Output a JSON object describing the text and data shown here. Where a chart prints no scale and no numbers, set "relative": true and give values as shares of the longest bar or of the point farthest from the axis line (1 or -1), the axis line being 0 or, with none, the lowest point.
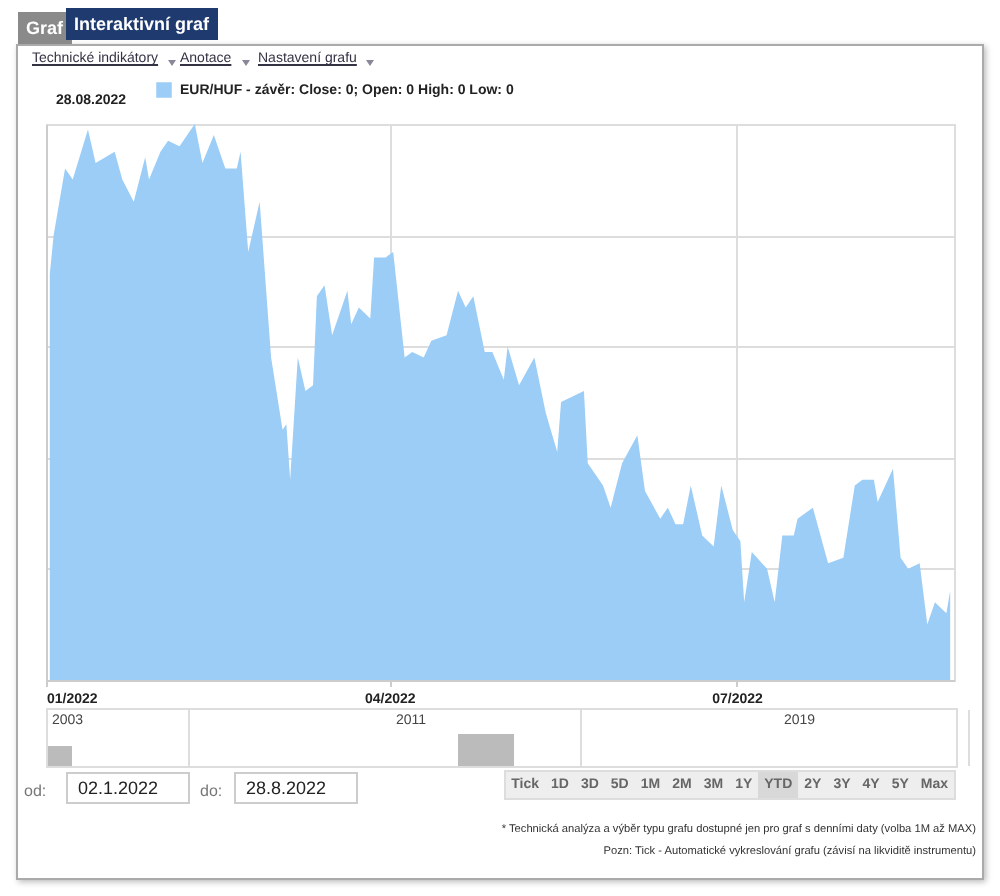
{
  "chart_data": {
    "type": "area",
    "relative": true,
    "title": "28.08.2022",
    "x": [
      "2022-01-02",
      "2022-01-03",
      "2022-01-06",
      "2022-01-08",
      "2022-01-12",
      "2022-01-14",
      "2022-01-19",
      "2022-01-21",
      "2022-01-24",
      "2022-01-27",
      "2022-01-28",
      "2022-01-31",
      "2022-02-02",
      "2022-02-05",
      "2022-02-09",
      "2022-02-11",
      "2022-02-14",
      "2022-02-17",
      "2022-02-20",
      "2022-02-21",
      "2022-02-23",
      "2022-02-26",
      "2022-03-01",
      "2022-03-04",
      "2022-03-05",
      "2022-03-06",
      "2022-03-08",
      "2022-03-10",
      "2022-03-12",
      "2022-03-13",
      "2022-03-15",
      "2022-03-17",
      "2022-03-21",
      "2022-03-22",
      "2022-03-24",
      "2022-03-27",
      "2022-03-28",
      "2022-03-31",
      "2022-04-02",
      "2022-04-05",
      "2022-04-07",
      "2022-04-10",
      "2022-04-12",
      "2022-04-16",
      "2022-04-19",
      "2022-04-21",
      "2022-04-23",
      "2022-04-26",
      "2022-04-28",
      "2022-05-01",
      "2022-05-02",
      "2022-05-05",
      "2022-05-09",
      "2022-05-12",
      "2022-05-15",
      "2022-05-16",
      "2022-05-22",
      "2022-05-23",
      "2022-05-27",
      "2022-05-29",
      "2022-06-01",
      "2022-06-05",
      "2022-06-07",
      "2022-06-11",
      "2022-06-13",
      "2022-06-15",
      "2022-06-17",
      "2022-06-19",
      "2022-06-22",
      "2022-06-25",
      "2022-06-27",
      "2022-06-30",
      "2022-07-02",
      "2022-07-03",
      "2022-07-05",
      "2022-07-09",
      "2022-07-11",
      "2022-07-13",
      "2022-07-16",
      "2022-07-17",
      "2022-07-21",
      "2022-07-25",
      "2022-07-29",
      "2022-08-01",
      "2022-08-03",
      "2022-08-06",
      "2022-08-07",
      "2022-08-11",
      "2022-08-13",
      "2022-08-15",
      "2022-08-18",
      "2022-08-20",
      "2022-08-22",
      "2022-08-25",
      "2022-08-26"
    ],
    "series": [
      {
        "name": "EUR/HUF - závěr: Close: 0; Open: 0 High: 0 Low: 0",
        "color": "#9bcdf6",
        "values": [
          0.73,
          0.8,
          0.92,
          0.9,
          0.99,
          0.93,
          0.95,
          0.9,
          0.86,
          0.94,
          0.9,
          0.95,
          0.97,
          0.96,
          1,
          0.93,
          0.98,
          0.92,
          0.92,
          0.95,
          0.77,
          0.86,
          0.58,
          0.45,
          0.46,
          0.36,
          0.58,
          0.52,
          0.53,
          0.69,
          0.71,
          0.62,
          0.7,
          0.64,
          0.67,
          0.65,
          0.76,
          0.76,
          0.77,
          0.58,
          0.59,
          0.58,
          0.61,
          0.62,
          0.7,
          0.67,
          0.69,
          0.59,
          0.59,
          0.54,
          0.6,
          0.53,
          0.58,
          0.48,
          0.41,
          0.5,
          0.52,
          0.39,
          0.35,
          0.31,
          0.39,
          0.44,
          0.34,
          0.29,
          0.31,
          0.28,
          0.28,
          0.35,
          0.26,
          0.24,
          0.35,
          0.27,
          0.25,
          0.14,
          0.23,
          0.2,
          0.14,
          0.26,
          0.26,
          0.29,
          0.31,
          0.21,
          0.22,
          0.35,
          0.36,
          0.36,
          0.32,
          0.38,
          0.22,
          0.2,
          0.21,
          0.1,
          0.14,
          0.12,
          0.16
        ]
      }
    ],
    "xlim": [
      "2022-01-01",
      "2022-08-27"
    ],
    "xticks": [
      {
        "value": "2022-01-01",
        "label": "01/2022"
      },
      {
        "value": "2022-04-01",
        "label": "04/2022"
      },
      {
        "value": "2022-07-01",
        "label": "07/2022"
      }
    ],
    "grid": true,
    "legend": "top left",
    "annotations": [
      "Graf",
      "Interaktivní graf",
      "Technické indikátory",
      "Anotace",
      "Nastavení grafu",
      "2003",
      "2011",
      "2019",
      "od:",
      "02.1.2022",
      "do:",
      "28.8.2022",
      "Tick",
      "1D",
      "3D",
      "5D",
      "1M",
      "2M",
      "3M",
      "1Y",
      "YTD",
      "2Y",
      "3Y",
      "4Y",
      "5Y",
      "Max",
      "* Technická analýza a výběr typu grafu dostupné jen pro graf s denními daty (volba 1M až MAX)",
      "Pozn: Tick - Automatické vykreslování grafu (závisí na likviditě instrumentu)"
    ]
  }
}
